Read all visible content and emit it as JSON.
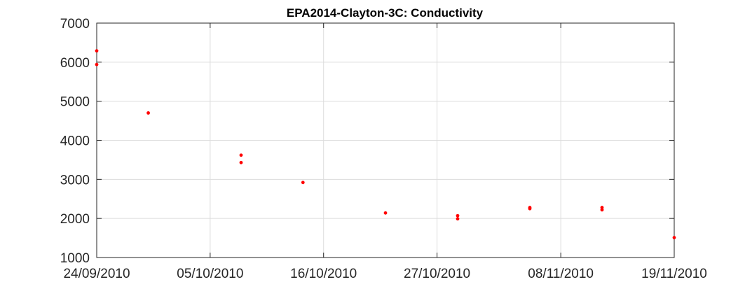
{
  "chart_data": {
    "type": "scatter",
    "title": "EPA2014-Clayton-3C: Conductivity",
    "xlabel": "",
    "ylabel": "",
    "x_axis": {
      "type": "date",
      "range": [
        "2010-09-24",
        "2010-11-19"
      ],
      "tick_values": [
        "2010-09-24",
        "2010-10-05",
        "2010-10-16",
        "2010-10-27",
        "2010-11-08",
        "2010-11-19"
      ],
      "tick_labels": [
        "24/09/2010",
        "05/10/2010",
        "16/10/2010",
        "27/10/2010",
        "08/11/2010",
        "19/11/2010"
      ]
    },
    "y_axis": {
      "range": [
        1000,
        7000
      ],
      "tick_values": [
        1000,
        2000,
        3000,
        4000,
        5000,
        6000,
        7000
      ],
      "tick_labels": [
        "1000",
        "2000",
        "3000",
        "4000",
        "5000",
        "6000",
        "7000"
      ]
    },
    "grid": true,
    "marker_color": "#ff0000",
    "series": [
      {
        "points": [
          {
            "x": "2010-09-24",
            "y": 6290
          },
          {
            "x": "2010-09-24",
            "y": 5940
          },
          {
            "x": "2010-09-29",
            "y": 4700
          },
          {
            "x": "2010-10-08",
            "y": 3620
          },
          {
            "x": "2010-10-08",
            "y": 3430
          },
          {
            "x": "2010-10-14",
            "y": 2920
          },
          {
            "x": "2010-10-22",
            "y": 2140
          },
          {
            "x": "2010-10-29",
            "y": 2070
          },
          {
            "x": "2010-10-29",
            "y": 1990
          },
          {
            "x": "2010-11-05",
            "y": 2280
          },
          {
            "x": "2010-11-05",
            "y": 2250
          },
          {
            "x": "2010-11-12",
            "y": 2280
          },
          {
            "x": "2010-11-12",
            "y": 2220
          },
          {
            "x": "2010-11-19",
            "y": 1510
          }
        ]
      }
    ]
  }
}
